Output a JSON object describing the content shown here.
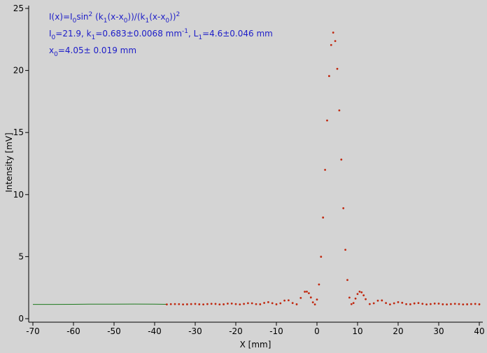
{
  "chart_data": {
    "type": "line",
    "xlabel": "X [mm]",
    "ylabel": "Intensity [mV]",
    "xlim": [
      -70,
      40
    ],
    "ylim": [
      0,
      25
    ],
    "xticks": [
      -70,
      -60,
      -50,
      -40,
      -30,
      -20,
      -10,
      0,
      10,
      20,
      30,
      40
    ],
    "yticks": [
      0,
      5,
      10,
      15,
      20,
      25
    ],
    "annotations": [
      [
        {
          "text": "I(x)=I"
        },
        {
          "sub": "0"
        },
        {
          "text": "sin"
        },
        {
          "sup": "2"
        },
        {
          "text": " (k"
        },
        {
          "sub": "1"
        },
        {
          "text": "(x-x"
        },
        {
          "sub": "0"
        },
        {
          "text": "))/(k"
        },
        {
          "sub": "1"
        },
        {
          "text": "(x-x"
        },
        {
          "sub": "0"
        },
        {
          "text": "))"
        },
        {
          "sup": "2"
        }
      ],
      [
        {
          "text": "I"
        },
        {
          "sub": "0"
        },
        {
          "text": "=21.9,  k"
        },
        {
          "sub": "1"
        },
        {
          "text": "=0.683±0.0068 mm"
        },
        {
          "sup": "-1"
        },
        {
          "text": ",   L"
        },
        {
          "sub": "1"
        },
        {
          "text": "=4.6±0.046 mm"
        }
      ],
      [
        {
          "text": "x"
        },
        {
          "sub": "0"
        },
        {
          "text": "=4.05±  0.019 mm"
        }
      ]
    ],
    "series": [
      {
        "style": "line",
        "color": "#1e7a1e",
        "x": [
          -70,
          -65,
          -60,
          -55,
          -50,
          -45,
          -40,
          -37
        ],
        "values": [
          1.15,
          1.15,
          1.16,
          1.17,
          1.17,
          1.18,
          1.17,
          1.16
        ]
      },
      {
        "style": "points",
        "color": "#c0280f",
        "x": [
          -37,
          -36,
          -35,
          -34,
          -33,
          -32,
          -31,
          -30,
          -29,
          -28,
          -27,
          -26,
          -25,
          -24,
          -23,
          -22,
          -21,
          -20,
          -19,
          -18,
          -17,
          -16,
          -15,
          -14,
          -13,
          -12,
          -11,
          -10,
          -9,
          -8,
          -7,
          -6,
          -5,
          -4,
          -3,
          -2.5,
          -2,
          -1.5,
          -1,
          -0.5,
          0,
          0.5,
          1,
          1.5,
          2,
          2.5,
          3,
          3.5,
          4,
          4.5,
          5,
          5.5,
          6,
          6.5,
          7,
          7.5,
          8,
          8.5,
          9,
          9.5,
          10,
          10.5,
          11,
          11.5,
          12,
          13,
          14,
          15,
          16,
          17,
          18,
          19,
          20,
          21,
          22,
          23,
          24,
          25,
          26,
          27,
          28,
          29,
          30,
          31,
          32,
          33,
          34,
          35,
          36,
          37,
          38,
          39,
          40
        ],
        "values": [
          1.15,
          1.17,
          1.18,
          1.17,
          1.15,
          1.16,
          1.18,
          1.19,
          1.16,
          1.15,
          1.18,
          1.2,
          1.19,
          1.15,
          1.16,
          1.21,
          1.22,
          1.18,
          1.15,
          1.19,
          1.25,
          1.24,
          1.17,
          1.16,
          1.27,
          1.33,
          1.25,
          1.16,
          1.24,
          1.46,
          1.48,
          1.26,
          1.16,
          1.67,
          2.17,
          2.18,
          2.05,
          1.71,
          1.32,
          1.15,
          1.54,
          2.76,
          4.99,
          8.15,
          11.99,
          15.97,
          19.55,
          22.05,
          23.05,
          22.37,
          20.13,
          16.78,
          12.82,
          8.9,
          5.55,
          3.12,
          1.7,
          1.17,
          1.26,
          1.62,
          1.99,
          2.18,
          2.12,
          1.88,
          1.57,
          1.18,
          1.24,
          1.45,
          1.47,
          1.26,
          1.15,
          1.24,
          1.33,
          1.28,
          1.17,
          1.16,
          1.23,
          1.26,
          1.2,
          1.15,
          1.18,
          1.22,
          1.21,
          1.16,
          1.15,
          1.18,
          1.2,
          1.18,
          1.15,
          1.16,
          1.18,
          1.19,
          1.16
        ]
      }
    ]
  }
}
